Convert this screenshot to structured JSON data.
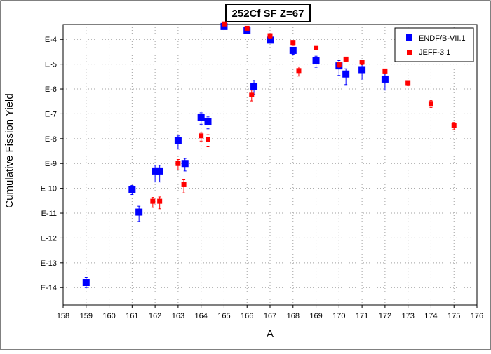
{
  "chart_data": {
    "type": "scatter",
    "title": "252Cf SF Z=67",
    "xlabel": "A",
    "ylabel": "Cumulative Fission Yield",
    "xlim": [
      158,
      176
    ],
    "ylim_exponent": [
      -14.7,
      -3.4
    ],
    "y_scale": "log",
    "x_ticks": [
      158,
      159,
      160,
      161,
      162,
      163,
      164,
      165,
      166,
      167,
      168,
      169,
      170,
      171,
      172,
      173,
      174,
      175,
      176
    ],
    "y_ticks": [
      {
        "label": "E-4",
        "exp": -4
      },
      {
        "label": "E-5",
        "exp": -5
      },
      {
        "label": "E-6",
        "exp": -6
      },
      {
        "label": "E-7",
        "exp": -7
      },
      {
        "label": "E-8",
        "exp": -8
      },
      {
        "label": "E-9",
        "exp": -9
      },
      {
        "label": "E-10",
        "exp": -10
      },
      {
        "label": "E-11",
        "exp": -11
      },
      {
        "label": "E-12",
        "exp": -12
      },
      {
        "label": "E-13",
        "exp": -13
      },
      {
        "label": "E-14",
        "exp": -14
      }
    ],
    "grid": true,
    "legend_position": "top-right",
    "series": [
      {
        "name": "ENDF/B-VII.1",
        "color": "#0000ff",
        "marker": "square-large",
        "points": [
          {
            "x": 159.0,
            "y": "1.6e-14",
            "lo": "1.0e-14",
            "hi": "2.6e-14"
          },
          {
            "x": 161.0,
            "y": "8.6e-11",
            "lo": "5.6e-11",
            "hi": "1.3e-10"
          },
          {
            "x": 161.3,
            "y": "1.1e-11",
            "lo": "4.6e-12",
            "hi": "1.9e-11"
          },
          {
            "x": 162.0,
            "y": "5.0e-10",
            "lo": "1.8e-10",
            "hi": "8.5e-10"
          },
          {
            "x": 162.2,
            "y": "5.0e-10",
            "lo": "1.8e-10",
            "hi": "8.5e-10"
          },
          {
            "x": 163.0,
            "y": "8.3e-9",
            "lo": "3.8e-9",
            "hi": "1.3e-8"
          },
          {
            "x": 163.3,
            "y": "1.0e-9",
            "lo": "5.0e-10",
            "hi": "1.6e-9"
          },
          {
            "x": 164.0,
            "y": "7.0e-8",
            "lo": "3.8e-8",
            "hi": "1.1e-7"
          },
          {
            "x": 164.3,
            "y": "5.0e-8",
            "lo": "2.5e-8",
            "hi": "7.5e-8"
          },
          {
            "x": 165.0,
            "y": "3.3e-4",
            "lo": "2.8e-4",
            "hi": "4.0e-4"
          },
          {
            "x": 166.0,
            "y": "2.3e-4",
            "lo": "1.9e-4",
            "hi": "2.8e-4"
          },
          {
            "x": 166.3,
            "y": "1.3e-6",
            "lo": "6.0e-7",
            "hi": "2.2e-6"
          },
          {
            "x": 167.0,
            "y": "9.3e-5",
            "lo": "7.0e-5",
            "hi": "1.2e-4"
          },
          {
            "x": 168.0,
            "y": "3.6e-5",
            "lo": "2.5e-5",
            "hi": "4.8e-5"
          },
          {
            "x": 169.0,
            "y": "1.4e-5",
            "lo": "7.5e-6",
            "hi": "2.1e-5"
          },
          {
            "x": 170.0,
            "y": "8.5e-6",
            "lo": "3.5e-6",
            "hi": "1.4e-5"
          },
          {
            "x": 170.3,
            "y": "4.0e-6",
            "lo": "1.5e-6",
            "hi": "6.5e-6"
          },
          {
            "x": 171.0,
            "y": "6.0e-6",
            "lo": "2.5e-6",
            "hi": "9.5e-6"
          },
          {
            "x": 172.0,
            "y": "2.5e-6",
            "lo": "9.0e-7",
            "hi": "4.0e-6"
          }
        ]
      },
      {
        "name": "JEFF-3.1",
        "color": "#ff0000",
        "marker": "square-small",
        "points": [
          {
            "x": 161.9,
            "y": "3.0e-11",
            "lo": "1.7e-11",
            "hi": "4.3e-11"
          },
          {
            "x": 162.2,
            "y": "3.0e-11",
            "lo": "1.5e-11",
            "hi": "4.5e-11"
          },
          {
            "x": 163.0,
            "y": "1.0e-9",
            "lo": "5.5e-10",
            "hi": "1.45e-9"
          },
          {
            "x": 163.25,
            "y": "1.4e-10",
            "lo": "6.5e-11",
            "hi": "2.2e-10"
          },
          {
            "x": 164.0,
            "y": "1.3e-8",
            "lo": "8.0e-9",
            "hi": "1.8e-8"
          },
          {
            "x": 164.3,
            "y": "9.5e-9",
            "lo": "5.0e-9",
            "hi": "1.45e-8"
          },
          {
            "x": 165.0,
            "y": "4.2e-4",
            "lo": "3.7e-4",
            "hi": "4.7e-4"
          },
          {
            "x": 166.0,
            "y": "2.8e-4",
            "lo": "2.4e-4",
            "hi": "3.2e-4"
          },
          {
            "x": 166.2,
            "y": "6.0e-7",
            "lo": "3.3e-7",
            "hi": "9.0e-7"
          },
          {
            "x": 167.0,
            "y": "1.4e-4",
            "lo": "1.1e-4",
            "hi": "1.7e-4"
          },
          {
            "x": 168.0,
            "y": "7.5e-5",
            "lo": "6.0e-5",
            "hi": "9.0e-5"
          },
          {
            "x": 168.25,
            "y": "5.5e-6",
            "lo": "3.3e-6",
            "hi": "7.8e-6"
          },
          {
            "x": 169.0,
            "y": "4.6e-5",
            "lo": "3.8e-5",
            "hi": "5.4e-5"
          },
          {
            "x": 170.0,
            "y": "9.8e-6",
            "lo": "7.5e-6",
            "hi": "1.2e-5"
          },
          {
            "x": 170.3,
            "y": "1.6e-5",
            "lo": "1.3e-5",
            "hi": "1.9e-5"
          },
          {
            "x": 171.0,
            "y": "1.2e-5",
            "lo": "9.5e-6",
            "hi": "1.45e-5"
          },
          {
            "x": 172.0,
            "y": "5.3e-6",
            "lo": "4.3e-6",
            "hi": "6.3e-6"
          },
          {
            "x": 173.0,
            "y": "1.8e-6",
            "lo": "1.45e-6",
            "hi": "2.15e-6"
          },
          {
            "x": 174.0,
            "y": "2.6e-7",
            "lo": "1.8e-7",
            "hi": "3.4e-7"
          },
          {
            "x": 175.0,
            "y": "3.4e-8",
            "lo": "2.3e-8",
            "hi": "4.5e-8"
          }
        ]
      }
    ]
  }
}
